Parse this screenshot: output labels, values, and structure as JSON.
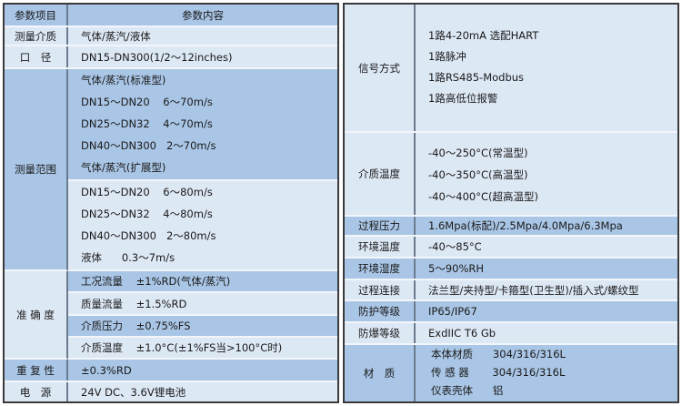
{
  "left": {
    "header": {
      "key": "参数项目",
      "value": "参数内容"
    },
    "medium": {
      "key": "测量介质",
      "value": "气体/蒸汽/液体"
    },
    "diameter": {
      "key": "口　径",
      "value": "DN15-DN300(1/2～12inches)"
    },
    "range": {
      "key": "测量范围",
      "lines": [
        "气体/蒸汽(标准型)",
        "DN15～DN20    6～70m/s",
        "DN25～DN32    4～70m/s",
        "DN40～DN300   2～70m/s",
        "气体/蒸汽(扩展型)",
        "DN15～DN20    6～80m/s",
        "DN25～DN32    4～80m/s",
        "DN40～DN300   2～80m/s",
        "液体      0.3～7m/s"
      ]
    },
    "accuracy": {
      "key": "准 确 度",
      "lines": [
        "工况流量    ±1%RD(气体/蒸汽)",
        "质量流量    ±1.5%RD",
        "介质压力    ±0.75%FS",
        "介质温度    ±1.0°C(±1%FS当>100°C时)"
      ]
    },
    "repeatability": {
      "key": "重 复 性",
      "value": "±0.3%RD"
    },
    "power": {
      "key": "电　源",
      "value": "24V DC、3.6V锂电池"
    }
  },
  "right": {
    "signal": {
      "key": "信号方式",
      "lines": [
        "1路4-20mA 选配HART",
        "1路脉冲",
        "1路RS485-Modbus",
        "1路高低位报警"
      ]
    },
    "medium_temp": {
      "key": "介质温度",
      "lines": [
        "-40～250°C(常温型)",
        "-40～350°C(高温型)",
        "-40～400°C(超高温型)"
      ]
    },
    "rows": [
      {
        "key": "过程压力",
        "value": "1.6Mpa(标配)/2.5Mpa/4.0Mpa/6.3Mpa"
      },
      {
        "key": "环境温度",
        "value": "-40～85°C"
      },
      {
        "key": "环境湿度",
        "value": "5～90%RH"
      },
      {
        "key": "过程连接",
        "value": "法兰型/夹持型/卡箍型(卫生型)/插入式/螺纹型"
      },
      {
        "key": "防护等级",
        "value": "IP65/IP67"
      },
      {
        "key": "防爆等级",
        "value": "ExdIIC T6 Gb"
      }
    ],
    "material": {
      "key": "材　质",
      "lines": [
        "本体材质      304/316/316L",
        "传 感 器       304/316/316L",
        "仪表壳体      铝"
      ]
    }
  },
  "colors": {
    "dark": "#aac6e6",
    "light": "#dde8f5"
  }
}
